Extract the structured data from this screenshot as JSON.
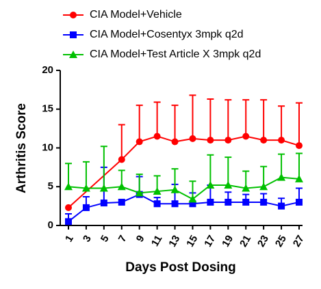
{
  "chart_data": {
    "type": "line",
    "x_label": "Days Post Dosing",
    "y_label": "Arthritis Score",
    "x": [
      1,
      3,
      5,
      7,
      9,
      11,
      13,
      15,
      17,
      19,
      21,
      23,
      25,
      27
    ],
    "xlim": [
      1,
      27
    ],
    "xticks": [
      1,
      3,
      5,
      7,
      9,
      11,
      13,
      15,
      17,
      19,
      21,
      23,
      25,
      27
    ],
    "ylim": [
      0,
      20
    ],
    "yticks": [
      0,
      5,
      10,
      15,
      20
    ],
    "series": [
      {
        "name": "CIA Model+Vehicle",
        "color": "#ff0000",
        "marker": "circle",
        "x": [
          1,
          7,
          9,
          11,
          13,
          15,
          17,
          19,
          21,
          23,
          25,
          27
        ],
        "values": [
          2.3,
          8.5,
          10.8,
          11.5,
          10.8,
          11.2,
          11.0,
          11.0,
          11.5,
          11.0,
          11.0,
          10.3
        ],
        "errors": [
          null,
          4.5,
          4.7,
          4.4,
          4.7,
          5.6,
          5.3,
          5.2,
          4.7,
          5.2,
          4.4,
          5.5
        ]
      },
      {
        "name": "CIA Model+Cosentyx 3mpk q2d",
        "color": "#0000ff",
        "marker": "square",
        "values": [
          0.5,
          2.3,
          2.9,
          3.0,
          4.0,
          2.8,
          2.8,
          2.8,
          3.0,
          3.0,
          3.0,
          3.0,
          2.5,
          3.0
        ],
        "errors": [
          1.0,
          1.4,
          4.6,
          null,
          2.3,
          0.8,
          2.5,
          1.4,
          2.2,
          1.3,
          1.0,
          1.1,
          1.0,
          1.8
        ]
      },
      {
        "name": "CIA Model+Test Article X 3mpk q2d",
        "color": "#00c000",
        "marker": "triangle",
        "values": [
          5.0,
          4.8,
          4.8,
          5.0,
          4.2,
          4.4,
          4.6,
          3.4,
          5.2,
          5.2,
          4.8,
          5.0,
          6.2,
          6.0
        ],
        "errors": [
          3.0,
          3.4,
          5.4,
          2.1,
          2.4,
          2.0,
          2.7,
          2.3,
          3.9,
          3.6,
          2.2,
          2.6,
          3.0,
          3.3
        ]
      }
    ]
  }
}
